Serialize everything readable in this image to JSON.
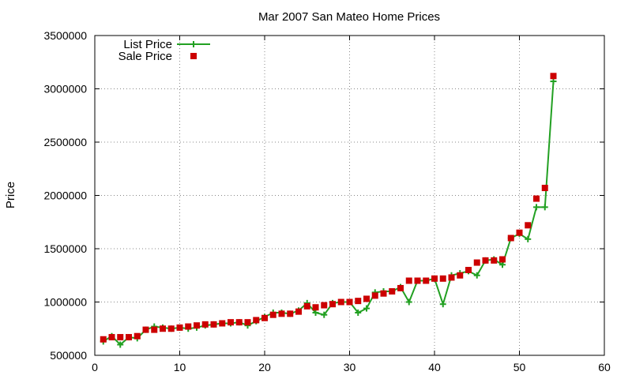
{
  "chart_data": {
    "type": "line",
    "title": "Mar 2007 San Mateo Home Prices",
    "xlabel": "",
    "ylabel": "Price",
    "xlim": [
      0,
      60
    ],
    "ylim": [
      500000,
      3500000
    ],
    "x_ticks": [
      0,
      10,
      20,
      30,
      40,
      50,
      60
    ],
    "y_ticks": [
      500000,
      1000000,
      1500000,
      2000000,
      2500000,
      3000000,
      3500000
    ],
    "grid": true,
    "legend_position": "top-left",
    "x": [
      1,
      2,
      3,
      4,
      5,
      6,
      7,
      8,
      9,
      10,
      11,
      12,
      13,
      14,
      15,
      16,
      17,
      18,
      19,
      20,
      21,
      22,
      23,
      24,
      25,
      26,
      27,
      28,
      29,
      30,
      31,
      32,
      33,
      34,
      35,
      36,
      37,
      38,
      39,
      40,
      41,
      42,
      43,
      44,
      45,
      46,
      47,
      48,
      49,
      50,
      51,
      52,
      53,
      54
    ],
    "series": [
      {
        "name": "List Price",
        "color": "#22a022",
        "marker": "plus",
        "values": [
          630000,
          680000,
          600000,
          670000,
          660000,
          740000,
          770000,
          760000,
          750000,
          760000,
          750000,
          760000,
          780000,
          790000,
          800000,
          800000,
          810000,
          780000,
          820000,
          860000,
          900000,
          900000,
          890000,
          920000,
          990000,
          900000,
          880000,
          990000,
          1000000,
          1000000,
          900000,
          940000,
          1090000,
          1100000,
          1100000,
          1140000,
          1000000,
          1200000,
          1200000,
          1220000,
          980000,
          1250000,
          1270000,
          1290000,
          1250000,
          1390000,
          1400000,
          1350000,
          1600000,
          1640000,
          1590000,
          1890000,
          1890000,
          3070000
        ]
      },
      {
        "name": "Sale Price",
        "color": "#cc0000",
        "marker": "square",
        "values": [
          650000,
          670000,
          670000,
          670000,
          680000,
          740000,
          740000,
          750000,
          750000,
          760000,
          770000,
          780000,
          790000,
          790000,
          800000,
          810000,
          810000,
          810000,
          830000,
          850000,
          880000,
          890000,
          890000,
          910000,
          960000,
          950000,
          970000,
          980000,
          1000000,
          1000000,
          1010000,
          1030000,
          1060000,
          1080000,
          1100000,
          1130000,
          1200000,
          1200000,
          1200000,
          1220000,
          1220000,
          1230000,
          1250000,
          1300000,
          1370000,
          1390000,
          1390000,
          1400000,
          1600000,
          1650000,
          1720000,
          1970000,
          2070000,
          3120000
        ]
      }
    ]
  }
}
